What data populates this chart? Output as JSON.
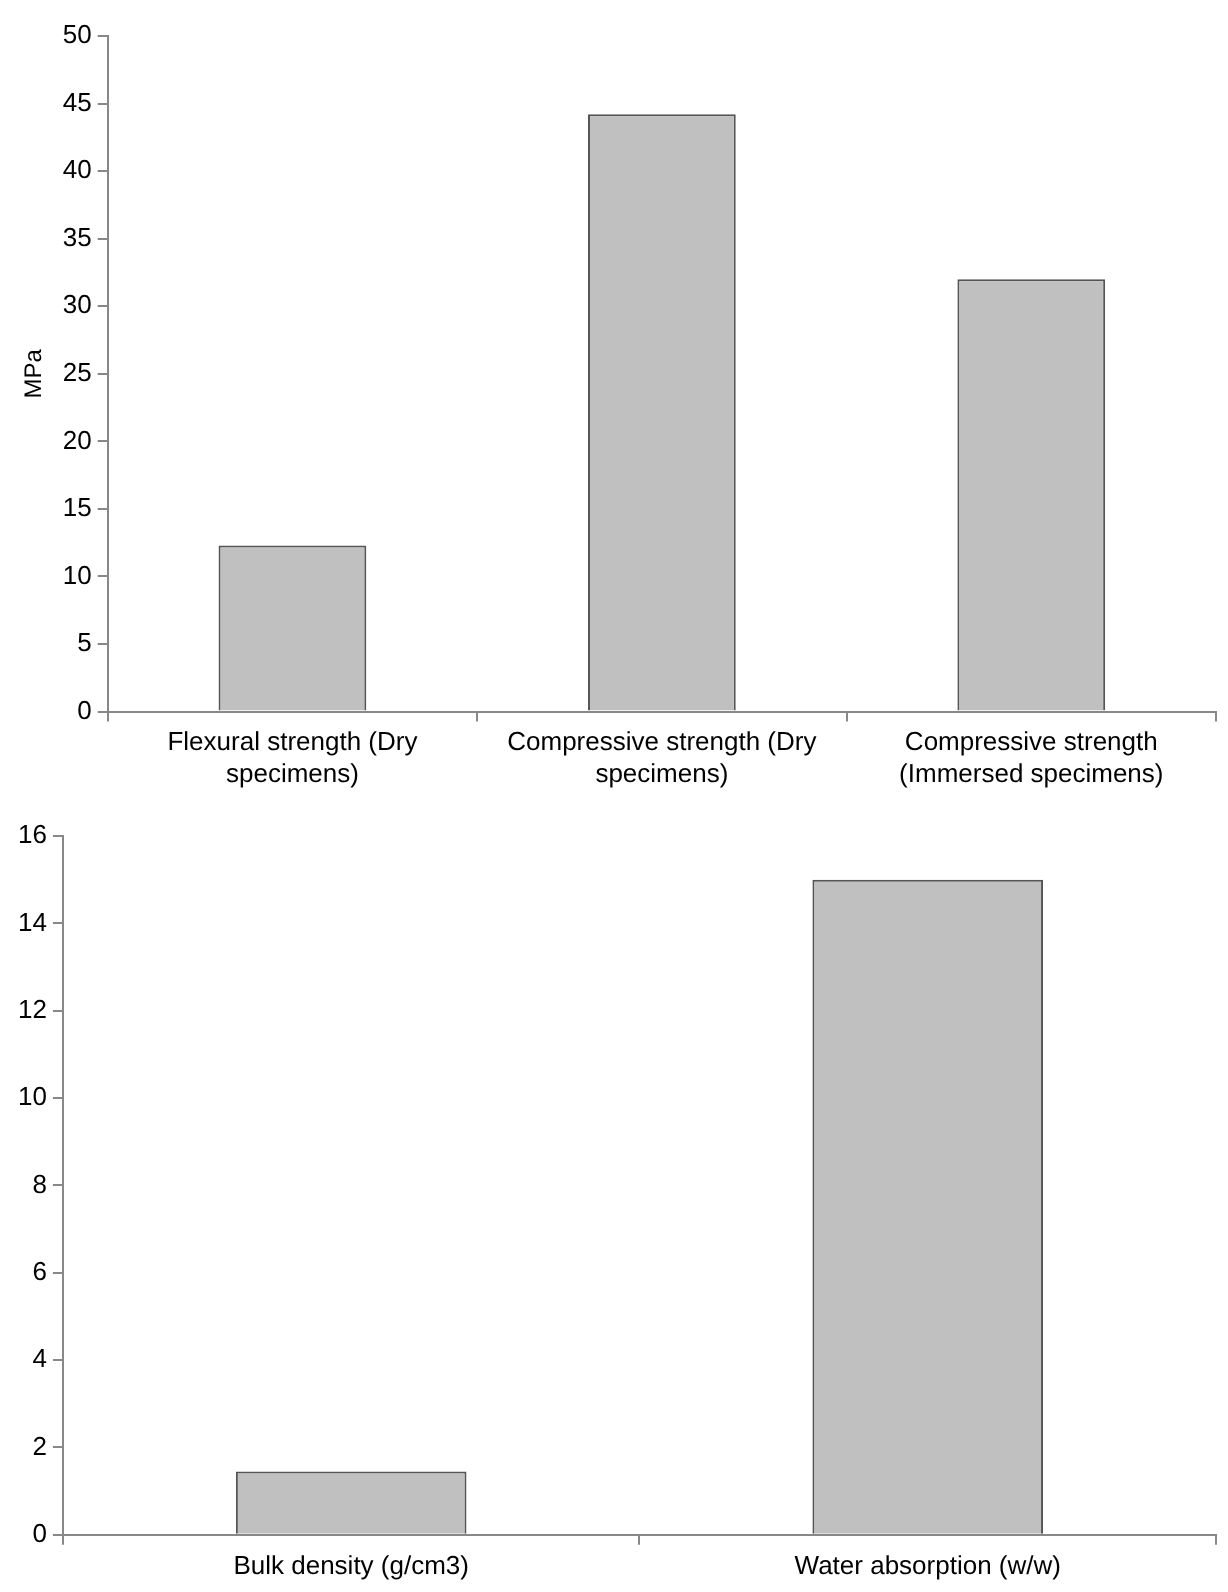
{
  "chart_data": [
    {
      "type": "bar",
      "ylabel": "MPa",
      "categories": [
        "Flexural strength (Dry specimens)",
        "Compressive strength (Dry specimens)",
        "Compressive strength (Immersed specimens)"
      ],
      "values": [
        12.3,
        44.2,
        32.0
      ],
      "color": "#c0c0c0",
      "ylim": [
        0,
        50
      ],
      "yticks": [
        0,
        5,
        10,
        15,
        20,
        25,
        30,
        35,
        40,
        45,
        50
      ],
      "grid": false,
      "legend": false
    },
    {
      "type": "bar",
      "categories": [
        "Bulk density (g/cm3)",
        "Water absorption (w/w)"
      ],
      "values": [
        1.45,
        15.0
      ],
      "color": "#c0c0c0",
      "ylim": [
        0,
        16
      ],
      "yticks": [
        0,
        2,
        4,
        6,
        8,
        10,
        12,
        14,
        16
      ],
      "grid": false,
      "legend": false
    }
  ]
}
